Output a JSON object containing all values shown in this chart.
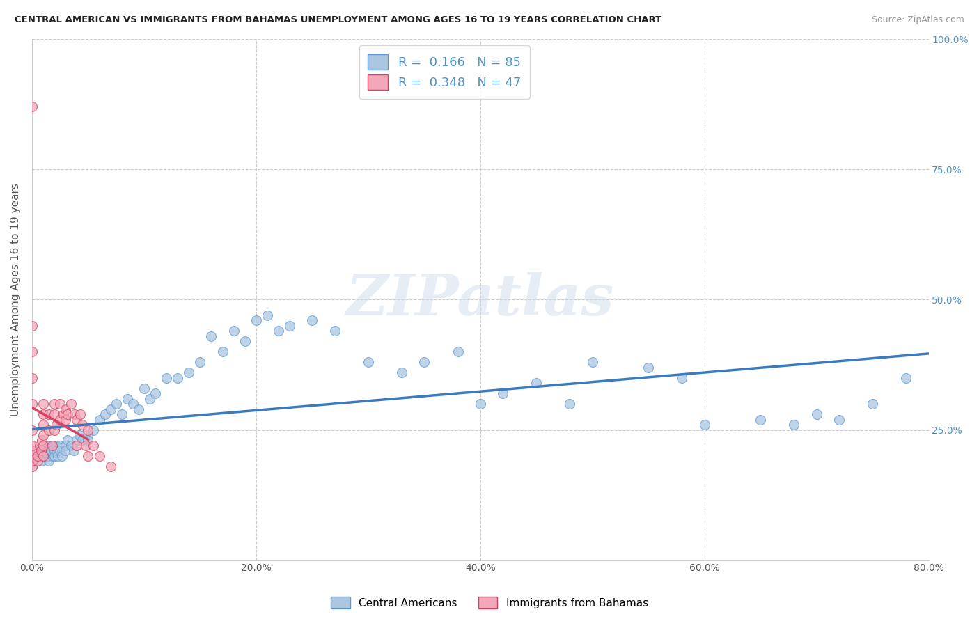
{
  "title": "CENTRAL AMERICAN VS IMMIGRANTS FROM BAHAMAS UNEMPLOYMENT AMONG AGES 16 TO 19 YEARS CORRELATION CHART",
  "source": "Source: ZipAtlas.com",
  "ylabel": "Unemployment Among Ages 16 to 19 years",
  "xlim": [
    0.0,
    0.8
  ],
  "ylim": [
    0.0,
    1.0
  ],
  "xticks": [
    0.0,
    0.2,
    0.4,
    0.6,
    0.8
  ],
  "yticks": [
    0.0,
    0.25,
    0.5,
    0.75,
    1.0
  ],
  "xticklabels": [
    "0.0%",
    "20.0%",
    "40.0%",
    "60.0%",
    "80.0%"
  ],
  "yticklabels_right": [
    "",
    "25.0%",
    "50.0%",
    "75.0%",
    "100.0%"
  ],
  "watermark": "ZIPatlas",
  "series": [
    {
      "name": "Central Americans",
      "color": "#adc6e0",
      "edge_color": "#5b9bd5",
      "R": 0.166,
      "N": 85,
      "trend_color": "#3a7bbf",
      "trend_linestyle": "solid",
      "trend_x_start": 0.0,
      "trend_x_end": 0.8,
      "x": [
        0.0,
        0.0,
        0.002,
        0.004,
        0.005,
        0.006,
        0.007,
        0.008,
        0.009,
        0.01,
        0.01,
        0.01,
        0.011,
        0.012,
        0.013,
        0.014,
        0.015,
        0.015,
        0.016,
        0.017,
        0.018,
        0.019,
        0.02,
        0.02,
        0.021,
        0.022,
        0.023,
        0.025,
        0.025,
        0.027,
        0.03,
        0.03,
        0.032,
        0.035,
        0.037,
        0.04,
        0.04,
        0.042,
        0.045,
        0.05,
        0.05,
        0.055,
        0.06,
        0.065,
        0.07,
        0.075,
        0.08,
        0.085,
        0.09,
        0.095,
        0.1,
        0.105,
        0.11,
        0.12,
        0.13,
        0.14,
        0.15,
        0.16,
        0.17,
        0.18,
        0.19,
        0.2,
        0.21,
        0.22,
        0.23,
        0.25,
        0.27,
        0.3,
        0.33,
        0.35,
        0.38,
        0.4,
        0.42,
        0.45,
        0.48,
        0.5,
        0.55,
        0.58,
        0.6,
        0.65,
        0.68,
        0.7,
        0.72,
        0.75,
        0.78
      ],
      "y": [
        0.18,
        0.2,
        0.21,
        0.19,
        0.2,
        0.21,
        0.2,
        0.19,
        0.22,
        0.2,
        0.21,
        0.22,
        0.21,
        0.2,
        0.22,
        0.2,
        0.19,
        0.21,
        0.22,
        0.21,
        0.2,
        0.22,
        0.21,
        0.2,
        0.22,
        0.21,
        0.2,
        0.22,
        0.21,
        0.2,
        0.22,
        0.21,
        0.23,
        0.22,
        0.21,
        0.23,
        0.22,
        0.24,
        0.23,
        0.24,
        0.23,
        0.25,
        0.27,
        0.28,
        0.29,
        0.3,
        0.28,
        0.31,
        0.3,
        0.29,
        0.33,
        0.31,
        0.32,
        0.35,
        0.35,
        0.36,
        0.38,
        0.43,
        0.4,
        0.44,
        0.42,
        0.46,
        0.47,
        0.44,
        0.45,
        0.46,
        0.44,
        0.38,
        0.36,
        0.38,
        0.4,
        0.3,
        0.32,
        0.34,
        0.3,
        0.38,
        0.37,
        0.35,
        0.26,
        0.27,
        0.26,
        0.28,
        0.27,
        0.3,
        0.35
      ]
    },
    {
      "name": "Immigrants from Bahamas",
      "color": "#f4a7b9",
      "edge_color": "#d94060",
      "R": 0.348,
      "N": 47,
      "trend_color": "#d94060",
      "trend_linestyle": "solid",
      "trend_x_start": 0.0,
      "trend_x_end": 0.05,
      "x": [
        0.0,
        0.0,
        0.0,
        0.0,
        0.0,
        0.0,
        0.0,
        0.0,
        0.0,
        0.0,
        0.0,
        0.005,
        0.005,
        0.007,
        0.008,
        0.009,
        0.01,
        0.01,
        0.01,
        0.01,
        0.01,
        0.01,
        0.015,
        0.015,
        0.018,
        0.02,
        0.02,
        0.02,
        0.022,
        0.025,
        0.025,
        0.028,
        0.03,
        0.03,
        0.032,
        0.035,
        0.038,
        0.04,
        0.04,
        0.043,
        0.045,
        0.048,
        0.05,
        0.05,
        0.055,
        0.06,
        0.07
      ],
      "y": [
        0.18,
        0.19,
        0.2,
        0.21,
        0.22,
        0.25,
        0.3,
        0.35,
        0.4,
        0.45,
        0.87,
        0.19,
        0.2,
        0.22,
        0.21,
        0.23,
        0.2,
        0.22,
        0.24,
        0.26,
        0.28,
        0.3,
        0.25,
        0.28,
        0.22,
        0.25,
        0.28,
        0.3,
        0.26,
        0.27,
        0.3,
        0.28,
        0.27,
        0.29,
        0.28,
        0.3,
        0.28,
        0.27,
        0.22,
        0.28,
        0.26,
        0.22,
        0.25,
        0.2,
        0.22,
        0.2,
        0.18
      ]
    }
  ]
}
